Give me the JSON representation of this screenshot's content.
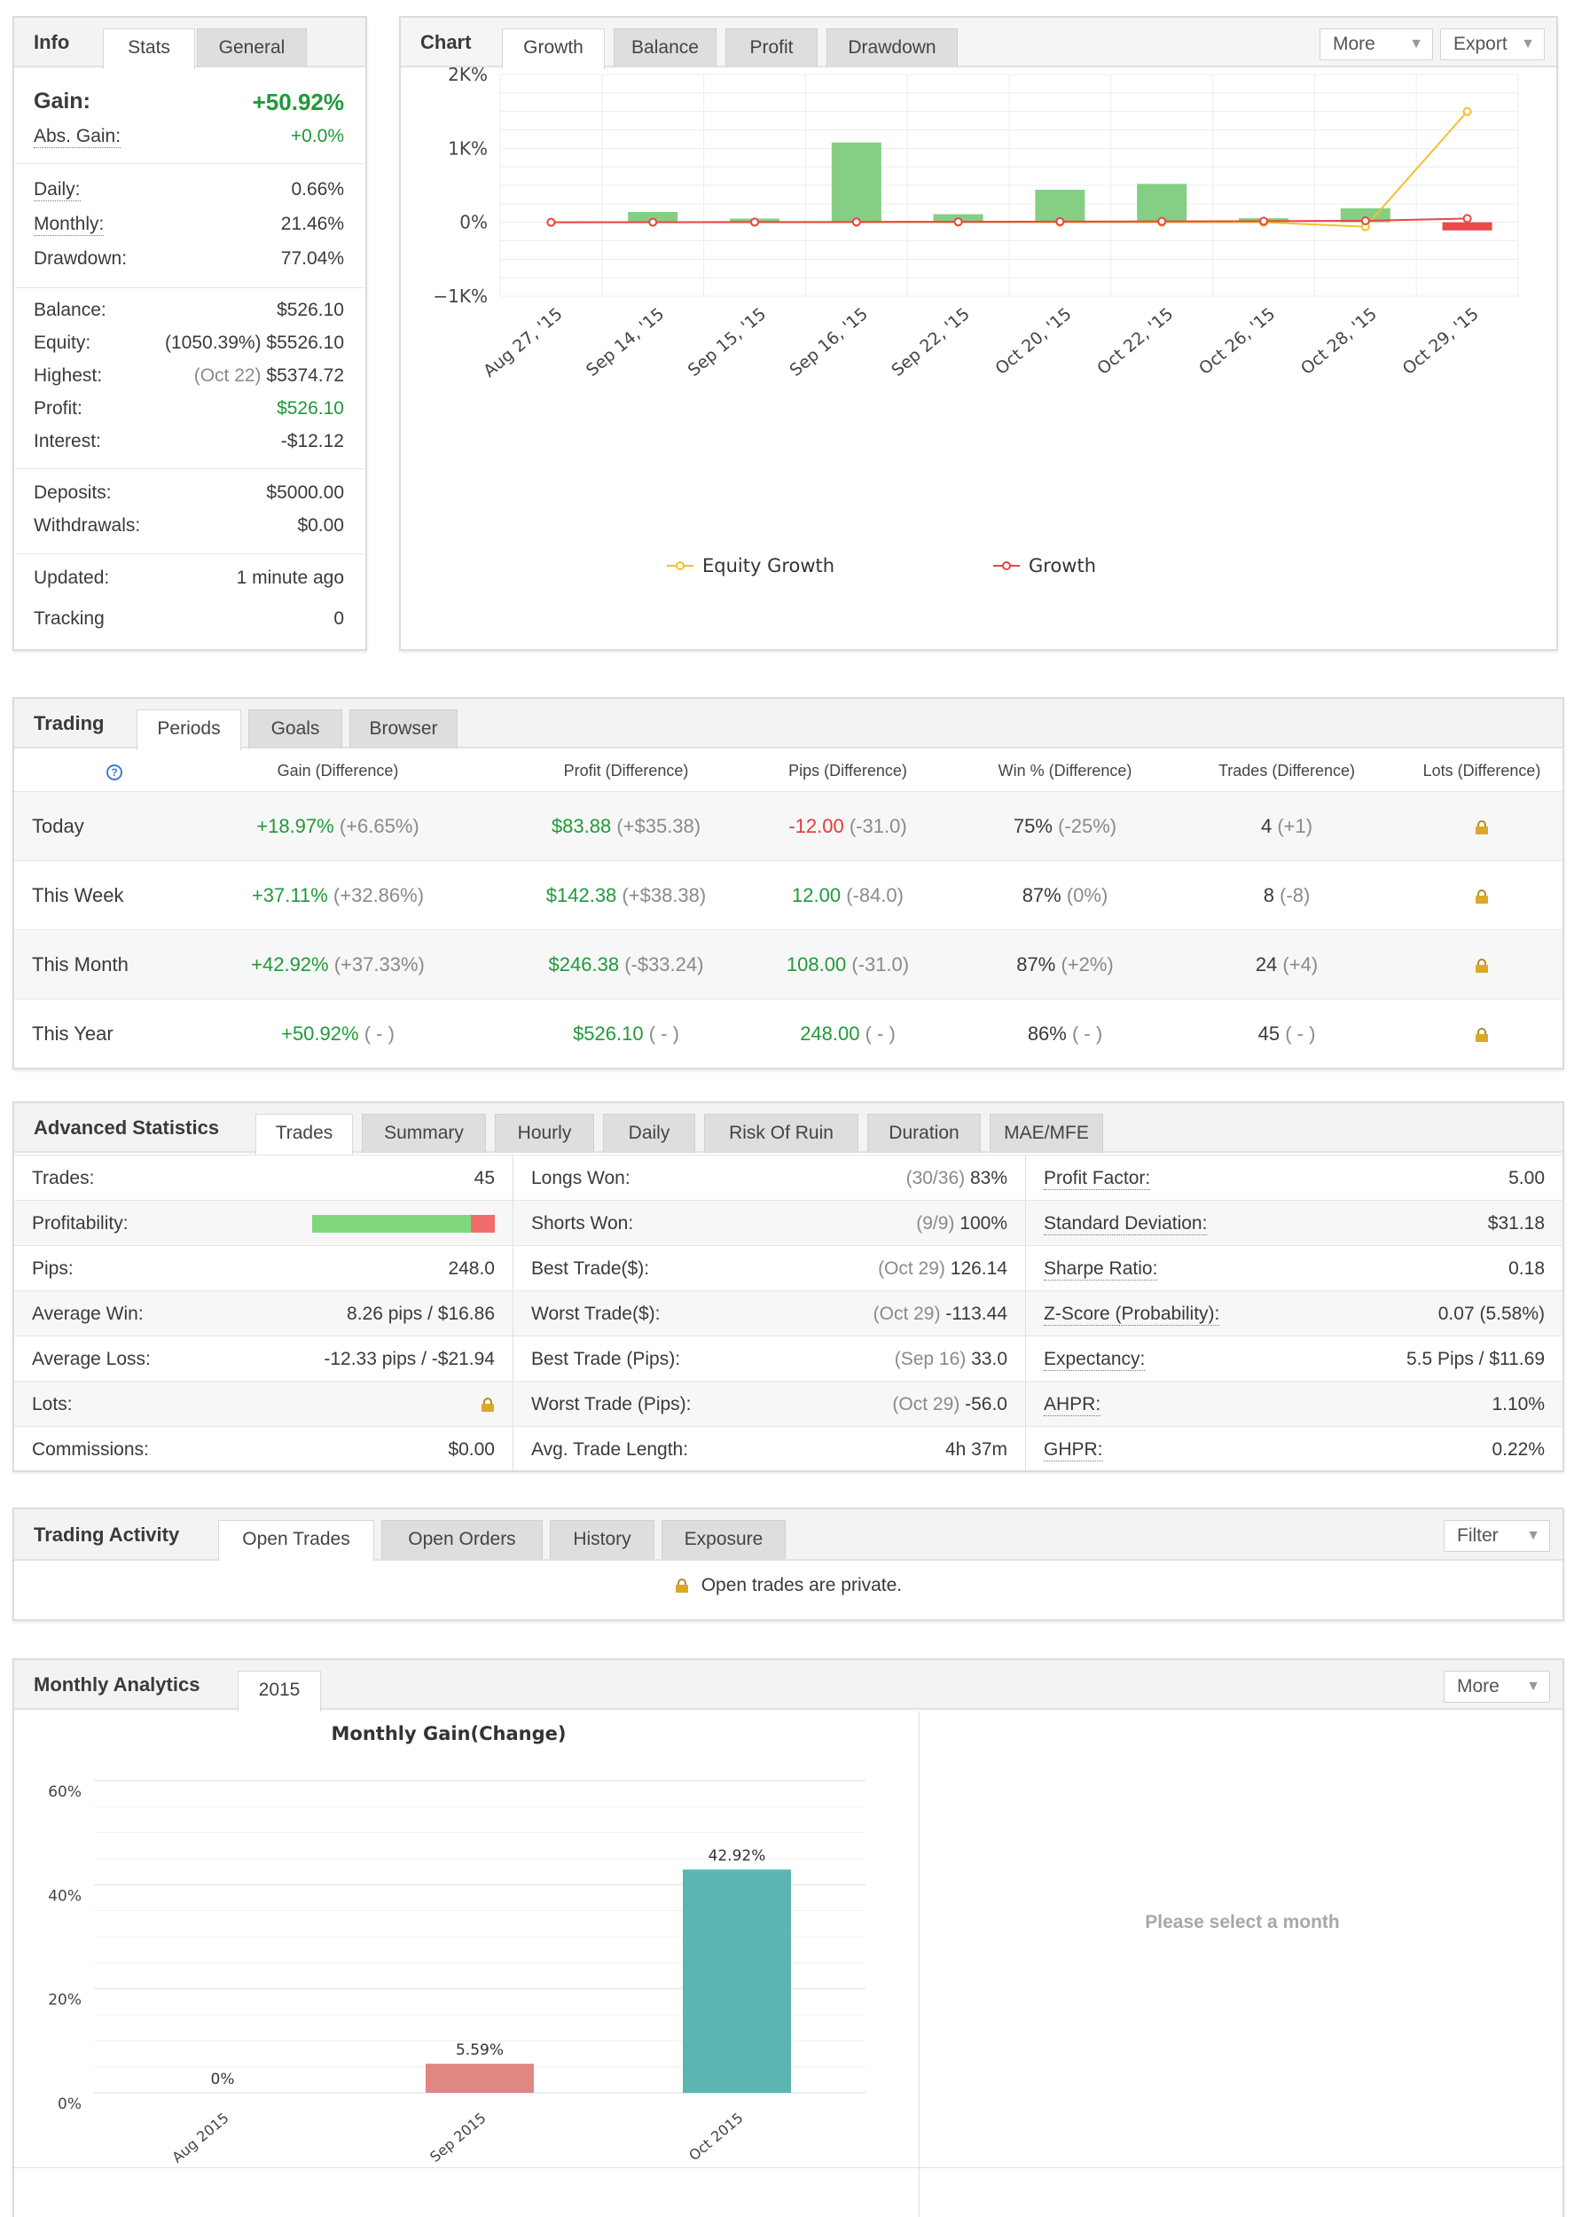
{
  "info": {
    "title": "Info",
    "tabs": [
      "Stats",
      "General"
    ],
    "gain_label": "Gain:",
    "gain_value": "+50.92%",
    "abs_gain_label": "Abs. Gain:",
    "abs_gain_value": "+0.0%",
    "daily_label": "Daily:",
    "daily_value": "0.66%",
    "monthly_label": "Monthly:",
    "monthly_value": "21.46%",
    "drawdown_label": "Drawdown:",
    "drawdown_value": "77.04%",
    "balance_label": "Balance:",
    "balance_value": "$526.10",
    "equity_label": "Equity:",
    "equity_note": "(1050.39%)",
    "equity_value": "$5526.10",
    "highest_label": "Highest:",
    "highest_note": "(Oct 22)",
    "highest_value": "$5374.72",
    "profit_label": "Profit:",
    "profit_value": "$526.10",
    "interest_label": "Interest:",
    "interest_value": "-$12.12",
    "deposits_label": "Deposits:",
    "deposits_value": "$5000.00",
    "withdrawals_label": "Withdrawals:",
    "withdrawals_value": "$0.00",
    "updated_label": "Updated:",
    "updated_value": "1 minute ago",
    "tracking_label": "Tracking",
    "tracking_value": "0"
  },
  "chart_panel": {
    "title": "Chart",
    "tabs": [
      "Growth",
      "Balance",
      "Profit",
      "Drawdown"
    ],
    "more_label": "More",
    "export_label": "Export"
  },
  "trading": {
    "title": "Trading",
    "tabs": [
      "Periods",
      "Goals",
      "Browser"
    ],
    "help_icon": "?",
    "headers": [
      "Gain (Difference)",
      "Profit (Difference)",
      "Pips (Difference)",
      "Win % (Difference)",
      "Trades (Difference)",
      "Lots (Difference)"
    ],
    "rows": [
      {
        "period": "Today",
        "gain": "+18.97%",
        "gain_diff": "(+6.65%)",
        "profit": "$83.88",
        "profit_diff": "(+$35.38)",
        "pips": "-12.00",
        "pips_diff": "(-31.0)",
        "win": "75%",
        "win_diff": "(-25%)",
        "trades": "4",
        "trades_diff": "(+1)"
      },
      {
        "period": "This Week",
        "gain": "+37.11%",
        "gain_diff": "(+32.86%)",
        "profit": "$142.38",
        "profit_diff": "(+$38.38)",
        "pips": "12.00",
        "pips_diff": "(-84.0)",
        "win": "87%",
        "win_diff": "(0%)",
        "trades": "8",
        "trades_diff": "(-8)"
      },
      {
        "period": "This Month",
        "gain": "+42.92%",
        "gain_diff": "(+37.33%)",
        "profit": "$246.38",
        "profit_diff": "(-$33.24)",
        "pips": "108.00",
        "pips_diff": "(-31.0)",
        "win": "87%",
        "win_diff": "(+2%)",
        "trades": "24",
        "trades_diff": "(+4)"
      },
      {
        "period": "This Year",
        "gain": "+50.92%",
        "gain_diff": "( - )",
        "profit": "$526.10",
        "profit_diff": "( - )",
        "pips": "248.00",
        "pips_diff": "( - )",
        "win": "86%",
        "win_diff": "( - )",
        "trades": "45",
        "trades_diff": "( - )"
      }
    ]
  },
  "advanced": {
    "title": "Advanced Statistics",
    "tabs": [
      "Trades",
      "Summary",
      "Hourly",
      "Daily",
      "Risk Of Ruin",
      "Duration",
      "MAE/MFE"
    ],
    "col1": [
      {
        "label": "Trades:",
        "value": "45"
      },
      {
        "label": "Profitability:",
        "value": ""
      },
      {
        "label": "Pips:",
        "value": "248.0"
      },
      {
        "label": "Average Win:",
        "value": "8.26 pips / $16.86"
      },
      {
        "label": "Average Loss:",
        "value": "-12.33 pips / -$21.94"
      },
      {
        "label": "Lots:",
        "value": ""
      },
      {
        "label": "Commissions:",
        "value": "$0.00"
      }
    ],
    "profitability_pct": 0.87,
    "col2": [
      {
        "label": "Longs Won:",
        "note": "(30/36)",
        "value": "83%"
      },
      {
        "label": "Shorts Won:",
        "note": "(9/9)",
        "value": "100%"
      },
      {
        "label": "Best Trade($):",
        "note": "(Oct 29)",
        "value": "126.14"
      },
      {
        "label": "Worst Trade($):",
        "note": "(Oct 29)",
        "value": "-113.44"
      },
      {
        "label": "Best Trade (Pips):",
        "note": "(Sep 16)",
        "value": "33.0"
      },
      {
        "label": "Worst Trade (Pips):",
        "note": "(Oct 29)",
        "value": "-56.0"
      },
      {
        "label": "Avg. Trade Length:",
        "note": "",
        "value": "4h 37m"
      }
    ],
    "col3": [
      {
        "label": "Profit Factor:",
        "value": "5.00"
      },
      {
        "label": "Standard Deviation:",
        "value": "$31.18"
      },
      {
        "label": "Sharpe Ratio:",
        "value": "0.18"
      },
      {
        "label": "Z-Score (Probability):",
        "value": "0.07 (5.58%)"
      },
      {
        "label": "Expectancy:",
        "value": "5.5 Pips / $11.69"
      },
      {
        "label": "AHPR:",
        "value": "1.10%"
      },
      {
        "label": "GHPR:",
        "value": "0.22%"
      }
    ]
  },
  "activity": {
    "title": "Trading Activity",
    "tabs": [
      "Open Trades",
      "Open Orders",
      "History",
      "Exposure"
    ],
    "filter_label": "Filter",
    "message": "Open trades are private."
  },
  "monthly": {
    "title": "Monthly Analytics",
    "tabs": [
      "2015"
    ],
    "more_label": "More",
    "placeholder": "Please select a month"
  },
  "chart_data": [
    {
      "type": "bar",
      "title": "",
      "categories": [
        "Aug 27, '15",
        "Sep 14, '15",
        "Sep 15, '15",
        "Sep 16, '15",
        "Sep 22, '15",
        "Oct 20, '15",
        "Oct 22, '15",
        "Oct 26, '15",
        "Oct 28, '15",
        "Oct 29, '15"
      ],
      "y_ticks": [
        "2K%",
        "1K%",
        "0%",
        "−1K%"
      ],
      "ylim": [
        -1000,
        2000
      ],
      "series": [
        {
          "name": "",
          "type": "bar",
          "color_pos": "#84cf84",
          "color_neg": "#ec4b4b",
          "values": [
            0,
            140,
            50,
            1080,
            110,
            440,
            520,
            55,
            190,
            -110
          ]
        },
        {
          "name": "Equity Growth",
          "type": "line",
          "color": "#f2c12e",
          "values": [
            0,
            0,
            0,
            0,
            0,
            0,
            0,
            0,
            -60,
            1500
          ]
        },
        {
          "name": "Growth",
          "type": "line",
          "color": "#e84545",
          "values": [
            0,
            2,
            3,
            5,
            7,
            10,
            12,
            15,
            20,
            51
          ]
        }
      ],
      "legend": "bottom",
      "grid": true
    },
    {
      "type": "bar",
      "title": "Monthly Gain(Change)",
      "categories": [
        "Aug 2015",
        "Sep 2015",
        "Oct 2015"
      ],
      "values": [
        0,
        5.59,
        42.92
      ],
      "value_labels": [
        "0%",
        "5.59%",
        "42.92%"
      ],
      "colors": [
        "#e08783",
        "#e08783",
        "#5bb5b3"
      ],
      "y_ticks": [
        "60%",
        "40%",
        "20%",
        "0%"
      ],
      "ylim": [
        0,
        60
      ],
      "grid": true
    }
  ]
}
